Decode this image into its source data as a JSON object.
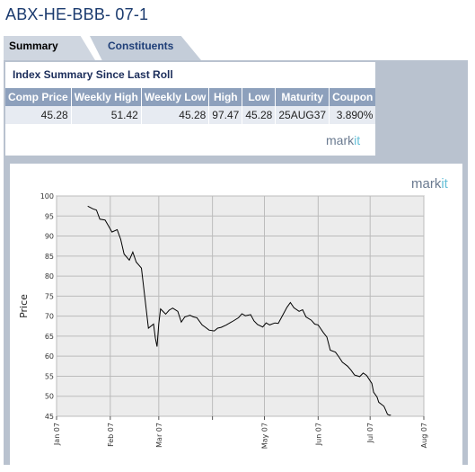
{
  "page": {
    "title": "ABX-HE-BBB- 07-1"
  },
  "tabs": [
    {
      "label": "Summary",
      "active": true
    },
    {
      "label": "Constituents",
      "active": false
    }
  ],
  "summary": {
    "heading": "Index Summary Since Last Roll",
    "columns": [
      "Comp Price",
      "Weekly High",
      "Weekly Low",
      "High",
      "Low",
      "Maturity",
      "Coupon"
    ],
    "row": [
      "45.28",
      "51.42",
      "45.28",
      "97.47",
      "45.28",
      "25AUG37",
      "3.890%"
    ]
  },
  "logo": {
    "text_a": "mark",
    "text_b": "it"
  },
  "colors": {
    "panel": "#b9c2cf",
    "header": "#8da0bc",
    "title": "#1a3a6e",
    "accent": "#66c0d8"
  },
  "chart_data": {
    "type": "line",
    "title": "",
    "xlabel": "",
    "ylabel": "Price",
    "ylim": [
      45,
      100
    ],
    "yticks": [
      45,
      50,
      55,
      60,
      65,
      70,
      75,
      80,
      85,
      90,
      95,
      100
    ],
    "xticks": [
      "Jan 07",
      "Feb 07",
      "Mar 07",
      "May 07",
      "Jun 07",
      "Jul 07",
      "Aug 07"
    ],
    "grid": true,
    "series": [
      {
        "color": "#000000",
        "x": [
          "2007-01-19",
          "2007-01-22",
          "2007-01-24",
          "2007-01-26",
          "2007-01-29",
          "2007-01-31",
          "2007-02-02",
          "2007-02-05",
          "2007-02-07",
          "2007-02-09",
          "2007-02-12",
          "2007-02-14",
          "2007-02-16",
          "2007-02-19",
          "2007-02-21",
          "2007-02-23",
          "2007-02-26",
          "2007-02-27",
          "2007-02-28",
          "2007-03-01",
          "2007-03-02",
          "2007-03-05",
          "2007-03-07",
          "2007-03-09",
          "2007-03-12",
          "2007-03-14",
          "2007-03-16",
          "2007-03-19",
          "2007-03-21",
          "2007-03-23",
          "2007-03-26",
          "2007-03-28",
          "2007-03-30",
          "2007-04-02",
          "2007-04-04",
          "2007-04-06",
          "2007-04-09",
          "2007-04-11",
          "2007-04-13",
          "2007-04-16",
          "2007-04-18",
          "2007-04-20",
          "2007-04-23",
          "2007-04-25",
          "2007-04-27",
          "2007-04-30",
          "2007-05-02",
          "2007-05-04",
          "2007-05-07",
          "2007-05-09",
          "2007-05-11",
          "2007-05-14",
          "2007-05-16",
          "2007-05-18",
          "2007-05-21",
          "2007-05-23",
          "2007-05-25",
          "2007-05-28",
          "2007-05-30",
          "2007-06-01",
          "2007-06-04",
          "2007-06-06",
          "2007-06-08",
          "2007-06-11",
          "2007-06-13",
          "2007-06-15",
          "2007-06-18",
          "2007-06-20",
          "2007-06-22",
          "2007-06-25",
          "2007-06-27",
          "2007-06-29",
          "2007-07-02",
          "2007-07-03",
          "2007-07-05",
          "2007-07-06",
          "2007-07-09",
          "2007-07-10",
          "2007-07-11",
          "2007-07-12",
          "2007-07-13"
        ],
        "y": [
          97.47,
          96.8,
          96.5,
          94.2,
          94,
          92.5,
          91,
          91.6,
          89.2,
          85.5,
          84,
          86,
          83.5,
          82,
          74.5,
          67,
          68,
          64.5,
          62.4,
          68,
          71.8,
          70.5,
          71.5,
          72,
          71.2,
          68.5,
          69.8,
          70.2,
          69.8,
          69.6,
          67.8,
          67.2,
          66.5,
          66.3,
          67,
          67.2,
          67.8,
          68.3,
          68.8,
          69.6,
          70.6,
          70.1,
          70.4,
          68.8,
          67.9,
          67.3,
          68.3,
          67.8,
          68.3,
          68.2,
          69.8,
          72.2,
          73.4,
          72.1,
          71.2,
          71.6,
          69.8,
          69,
          68,
          67.8,
          65.9,
          64.8,
          61.5,
          61,
          59.8,
          58.5,
          57.5,
          56.5,
          55.3,
          54.9,
          55.8,
          55.2,
          53.2,
          51,
          49.8,
          48.5,
          47.5,
          46.5,
          45.5,
          45.3,
          45.28
        ]
      }
    ]
  }
}
